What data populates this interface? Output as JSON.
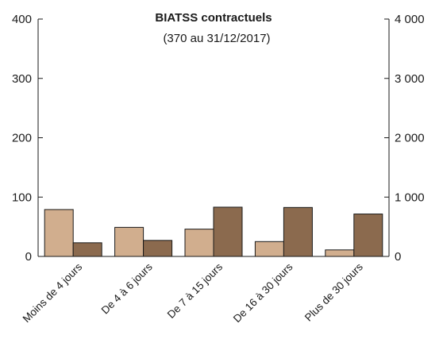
{
  "chart_data": {
    "type": "bar",
    "title": "BIATSS contractuels",
    "subtitle": "(370 au 31/12/2017)",
    "categories": [
      "Moins de 4 jours",
      "De 4 à 6 jours",
      "De 7 à 15 jours",
      "De 16 à 30 jours",
      "Plus de 30 jours"
    ],
    "series": [
      {
        "axis": "left",
        "color": "#d1ae8e",
        "values": [
          79,
          49,
          46,
          25,
          11
        ]
      },
      {
        "axis": "right",
        "color": "#8b6a4e",
        "values": [
          230,
          270,
          830,
          825,
          715
        ]
      }
    ],
    "left_axis": {
      "ylim": [
        0,
        400
      ],
      "ticks": [
        "0",
        "100",
        "200",
        "300",
        "400"
      ]
    },
    "right_axis": {
      "ylim": [
        0,
        4000
      ],
      "ticks": [
        "0",
        "1 000",
        "2 000",
        "3 000",
        "4 000"
      ]
    },
    "grid": false,
    "legend": "none"
  }
}
